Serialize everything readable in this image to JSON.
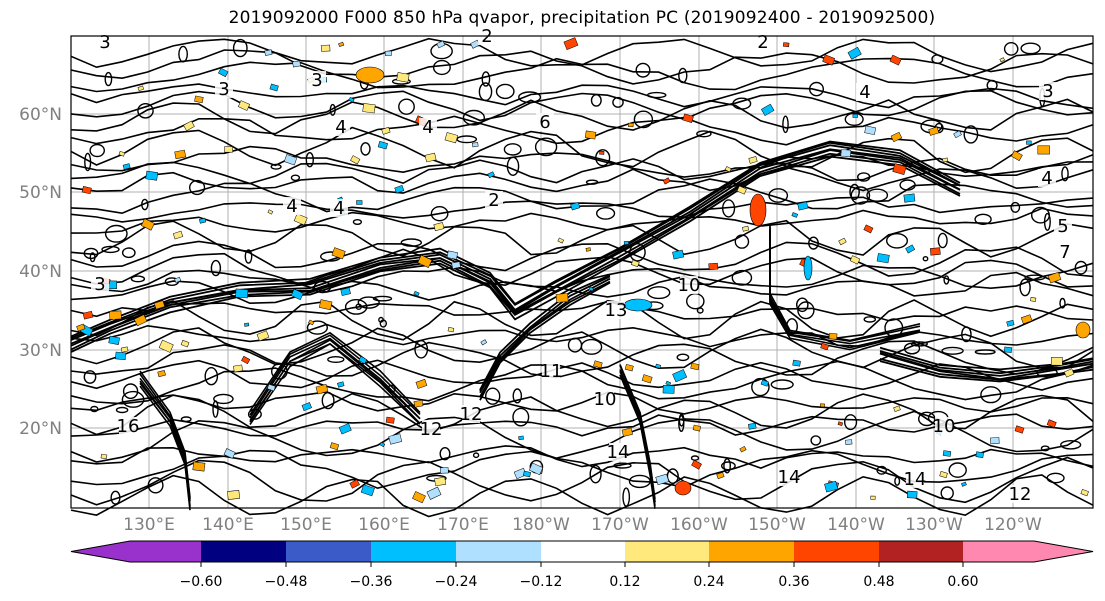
{
  "title": "2019092000 F000 850 hPa qvapor, precipitation PC (2019092400 - 2019092500)",
  "map": {
    "lat_labels": [
      "60°N",
      "50°N",
      "40°N",
      "30°N",
      "20°N"
    ],
    "lon_labels": [
      "130°E",
      "140°E",
      "150°E",
      "160°E",
      "170°E",
      "180°W",
      "170°W",
      "160°W",
      "150°W",
      "140°W",
      "130°W",
      "120°W"
    ],
    "contour_labels": [
      "3",
      "2",
      "2",
      "3",
      "4",
      "4",
      "4",
      "4",
      "3",
      "4",
      "2",
      "3",
      "6",
      "4",
      "5",
      "7",
      "10",
      "11",
      "12",
      "10",
      "12",
      "14",
      "16",
      "14",
      "14",
      "12",
      "10",
      "13",
      "3"
    ]
  },
  "colorbar": {
    "ticks": [
      "−0.60",
      "−0.48",
      "−0.36",
      "−0.24",
      "−0.12",
      "0.12",
      "0.24",
      "0.36",
      "0.48",
      "0.60"
    ],
    "colors": [
      "#9932cc",
      "#000080",
      "#3a5bc8",
      "#00bfff",
      "#b0e0ff",
      "#ffffff",
      "#ffe87c",
      "#ffa500",
      "#ff4500",
      "#b22222",
      "#ff88b0"
    ]
  }
}
